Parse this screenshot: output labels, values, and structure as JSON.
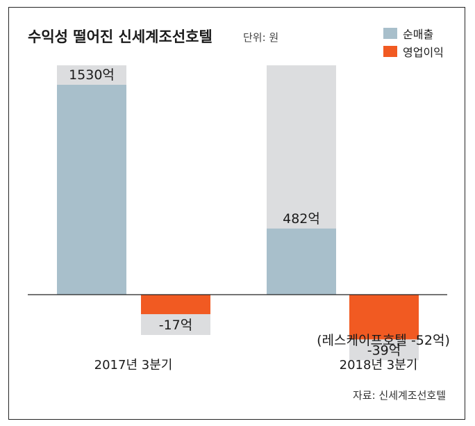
{
  "chart_data": {
    "type": "bar",
    "title": "수익성 떨어진 신세계조선호텔",
    "unit": "단위: 원",
    "source": "자료: 신세계조선호텔",
    "categories": [
      "2017년 3분기",
      "2018년 3분기"
    ],
    "series": [
      {
        "name": "순매출",
        "values": [
          1530,
          482
        ],
        "labels": [
          "1530억",
          "482억"
        ],
        "color": "#a8bfcb"
      },
      {
        "name": "영업이익",
        "values": [
          -17,
          -39
        ],
        "labels": [
          "-17억",
          "-39억"
        ],
        "color": "#f15a22"
      }
    ],
    "note": "(레스케이프호텔 -52억)",
    "legend_position": "top-right",
    "grid": false
  }
}
